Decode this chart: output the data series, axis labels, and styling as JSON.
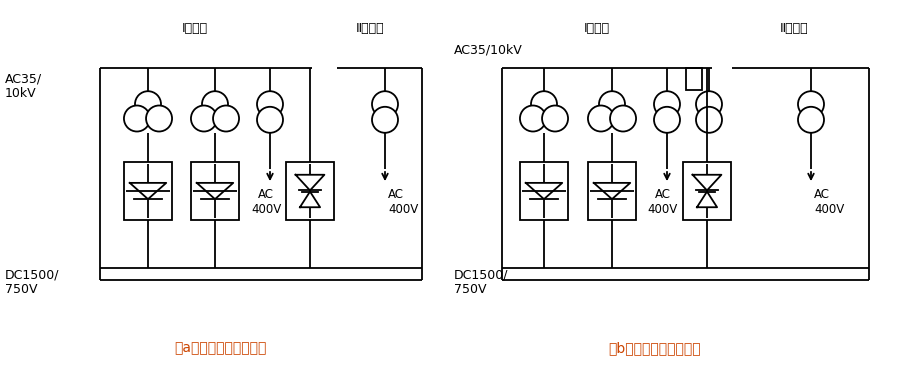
{
  "fig_width": 8.98,
  "fig_height": 3.69,
  "dpi": 100,
  "bg_color": "#ffffff",
  "line_color": "#000000",
  "caption_color": "#cc4400",
  "caption_a": "（a）中压逆变回馈结构",
  "caption_b": "（b）低压逆变回馈结构",
  "label_ac35_a": "AC35/\n10kV",
  "label_dc1500_a": "DC1500/\n750V",
  "label_dc1500_b": "DC1500/\n750V",
  "label_bus1_a": "Ⅰ段母线",
  "label_bus2_a": "Ⅱ段母线",
  "label_bus1_b": "Ⅰ段母线",
  "label_bus2_b": "Ⅱ段母线",
  "label_ac35_b": "AC35/10kV",
  "label_ac400": "AC\n400V"
}
